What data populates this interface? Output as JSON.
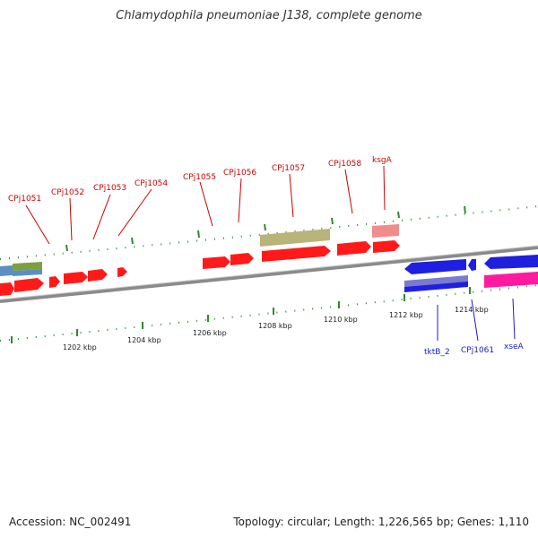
{
  "header": {
    "title": "Chlamydophila pneumoniae J138, complete genome"
  },
  "footer": {
    "accession": "Accession: NC_002491",
    "stats": "Topology: circular; Length: 1,226,565 bp; Genes: 1,110"
  },
  "colors": {
    "forward_gene": "#ff1a1a",
    "reverse_gene": "#1f1fe0",
    "pink_gene": "#ff1aa0",
    "khaki_feature": "#b8b47a",
    "salmon_feature": "#f08c8c",
    "steel_feature": "#5b8fc4",
    "olive_feature": "#7f9f3a",
    "lavender_feature": "#7a7ad0",
    "backbone": "#888888",
    "tick": "#2e8b2e",
    "forward_label": "#cc0000",
    "reverse_label": "#1a1acc"
  },
  "top_gene_labels": [
    {
      "text": "CPj1051"
    },
    {
      "text": "CPj1052"
    },
    {
      "text": "CPj1053"
    },
    {
      "text": "CPj1054"
    },
    {
      "text": "CPj1055"
    },
    {
      "text": "CPj1056"
    },
    {
      "text": "CPj1057"
    },
    {
      "text": "CPj1058"
    },
    {
      "text": "ksgA"
    }
  ],
  "bottom_gene_labels": [
    {
      "text": "tktB_2"
    },
    {
      "text": "CPj1061"
    },
    {
      "text": "xseA"
    }
  ],
  "scale_labels": [
    "1202 kbp",
    "1204 kbp",
    "1206 kbp",
    "1208 kbp",
    "1210 kbp",
    "1212 kbp",
    "1214 kbp"
  ]
}
